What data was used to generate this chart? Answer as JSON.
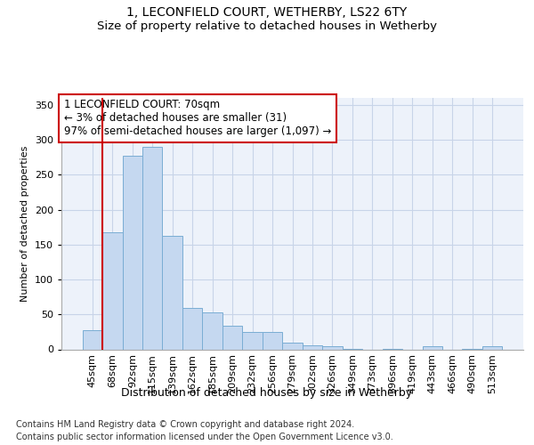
{
  "title": "1, LECONFIELD COURT, WETHERBY, LS22 6TY",
  "subtitle": "Size of property relative to detached houses in Wetherby",
  "xlabel": "Distribution of detached houses by size in Wetherby",
  "ylabel": "Number of detached properties",
  "categories": [
    "45sqm",
    "68sqm",
    "92sqm",
    "115sqm",
    "139sqm",
    "162sqm",
    "185sqm",
    "209sqm",
    "232sqm",
    "256sqm",
    "279sqm",
    "302sqm",
    "326sqm",
    "349sqm",
    "373sqm",
    "396sqm",
    "419sqm",
    "443sqm",
    "466sqm",
    "490sqm",
    "513sqm"
  ],
  "values": [
    28,
    168,
    277,
    290,
    162,
    59,
    53,
    34,
    25,
    25,
    9,
    6,
    4,
    1,
    0,
    1,
    0,
    4,
    0,
    1,
    4
  ],
  "bar_color": "#c5d8f0",
  "bar_edge_color": "#7aadd4",
  "highlight_bar_index": 1,
  "highlight_line_color": "#cc0000",
  "annotation_line1": "1 LECONFIELD COURT: 70sqm",
  "annotation_line2": "← 3% of detached houses are smaller (31)",
  "annotation_line3": "97% of semi-detached houses are larger (1,097) →",
  "annotation_box_color": "#cc0000",
  "ylim": [
    0,
    360
  ],
  "yticks": [
    0,
    50,
    100,
    150,
    200,
    250,
    300,
    350
  ],
  "grid_color": "#c8d4e8",
  "background_color": "#edf2fa",
  "footer_line1": "Contains HM Land Registry data © Crown copyright and database right 2024.",
  "footer_line2": "Contains public sector information licensed under the Open Government Licence v3.0.",
  "title_fontsize": 10,
  "subtitle_fontsize": 9.5,
  "xlabel_fontsize": 9,
  "ylabel_fontsize": 8,
  "tick_fontsize": 8,
  "annotation_fontsize": 8.5,
  "footer_fontsize": 7
}
